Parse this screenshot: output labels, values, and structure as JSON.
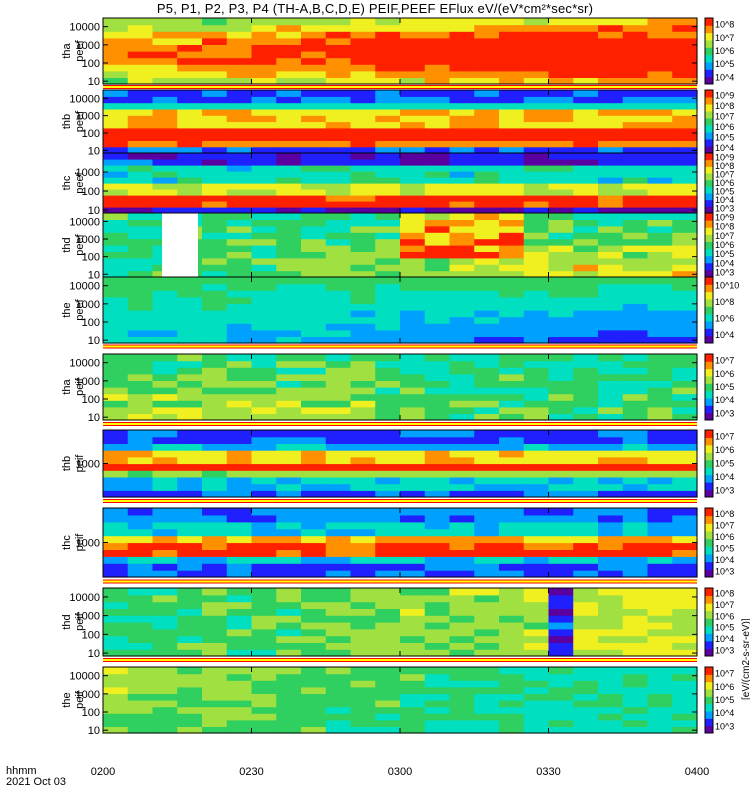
{
  "title": "P5, P1, P2, P3, P4 (TH-A,B,C,D,E) PEIF,PEEF EFlux eV/(eV*cm²*sec*sr)",
  "footer": {
    "time_label": "hhmm",
    "date_label": "2021 Oct 03"
  },
  "colorbar_units": "[eV/(cm2-s-sr-eV)]",
  "chart_data": {
    "type": "heatmap",
    "x_ticks": [
      "0200",
      "0230",
      "0300",
      "0330",
      "0400"
    ],
    "x_range": [
      "02:00",
      "04:00"
    ],
    "y_scale": "log",
    "panels": [
      {
        "probe": "tha",
        "product": "peef",
        "y_label": [
          "tha",
          "peef"
        ],
        "y_ticks": [
          "10",
          "100",
          "1000",
          "10000"
        ],
        "y_range": [
          7,
          30000
        ],
        "cbar_ticks": [
          "10^4",
          "10^5",
          "10^6",
          "10^7",
          "10^8"
        ]
      },
      {
        "probe": "thb",
        "product": "peef",
        "y_label": [
          "thb",
          "peef"
        ],
        "y_ticks": [
          "10",
          "100",
          "1000",
          "10000"
        ],
        "y_range": [
          7,
          30000
        ],
        "cbar_ticks": [
          "10^4",
          "10^5",
          "10^6",
          "10^7",
          "10^8",
          "10^9"
        ]
      },
      {
        "probe": "thc",
        "product": "peef",
        "y_label": [
          "thc",
          "peef"
        ],
        "y_ticks": [
          "10",
          "100",
          "1000"
        ],
        "y_range": [
          7,
          10000
        ],
        "cbar_ticks": [
          "10^3",
          "10^4",
          "10^5",
          "10^6",
          "10^7",
          "10^8",
          "10^9"
        ]
      },
      {
        "probe": "thd",
        "product": "peef",
        "y_label": [
          "thd",
          "peef"
        ],
        "y_ticks": [
          "10",
          "100",
          "1000",
          "10000"
        ],
        "y_range": [
          7,
          30000
        ],
        "cbar_ticks": [
          "10^3",
          "10^4",
          "10^5",
          "10^6",
          "10^7",
          "10^8",
          "10^9"
        ]
      },
      {
        "probe": "the",
        "product": "peef",
        "y_label": [
          "the",
          "peef"
        ],
        "y_ticks": [
          "10",
          "100",
          "1000",
          "10000"
        ],
        "y_range": [
          7,
          30000
        ],
        "cbar_ticks": [
          "10^4",
          "10^6",
          "10^8",
          "10^10"
        ]
      },
      {
        "probe": "tha",
        "product": "peif",
        "y_label": [
          "tha",
          "peif"
        ],
        "y_ticks": [
          "10",
          "100",
          "1000",
          "10000"
        ],
        "y_range": [
          7,
          30000
        ],
        "cbar_ticks": [
          "10^3",
          "10^4",
          "10^5",
          "10^6",
          "10^7"
        ]
      },
      {
        "probe": "thb",
        "product": "peif",
        "y_label": [
          "thb",
          "peif"
        ],
        "y_ticks": [
          "1000"
        ],
        "y_range": [
          100,
          10000
        ],
        "cbar_ticks": [
          "10^3",
          "10^4",
          "10^5",
          "10^6",
          "10^7"
        ]
      },
      {
        "probe": "thc",
        "product": "peif",
        "y_label": [
          "thc",
          "peif"
        ],
        "y_ticks": [
          "1000"
        ],
        "y_range": [
          100,
          10000
        ],
        "cbar_ticks": [
          "10^3",
          "10^4",
          "10^5",
          "10^6",
          "10^7",
          "10^8"
        ]
      },
      {
        "probe": "thd",
        "product": "peif",
        "y_label": [
          "thd",
          "peif"
        ],
        "y_ticks": [
          "10",
          "100",
          "1000",
          "10000"
        ],
        "y_range": [
          7,
          30000
        ],
        "cbar_ticks": [
          "10^3",
          "10^4",
          "10^5",
          "10^6",
          "10^7",
          "10^8"
        ]
      },
      {
        "probe": "the",
        "product": "peif",
        "y_label": [
          "the",
          "peif"
        ],
        "y_ticks": [
          "10",
          "100",
          "1000",
          "10000"
        ],
        "y_range": [
          7,
          30000
        ],
        "cbar_ticks": [
          "10^3",
          "10^4",
          "10^5",
          "10^6",
          "10^7"
        ]
      }
    ],
    "colormap": [
      "#5a00a0",
      "#2020ff",
      "#00a0ff",
      "#00e0c0",
      "#30d060",
      "#a0e040",
      "#f0f020",
      "#ff9000",
      "#ff2000"
    ]
  }
}
